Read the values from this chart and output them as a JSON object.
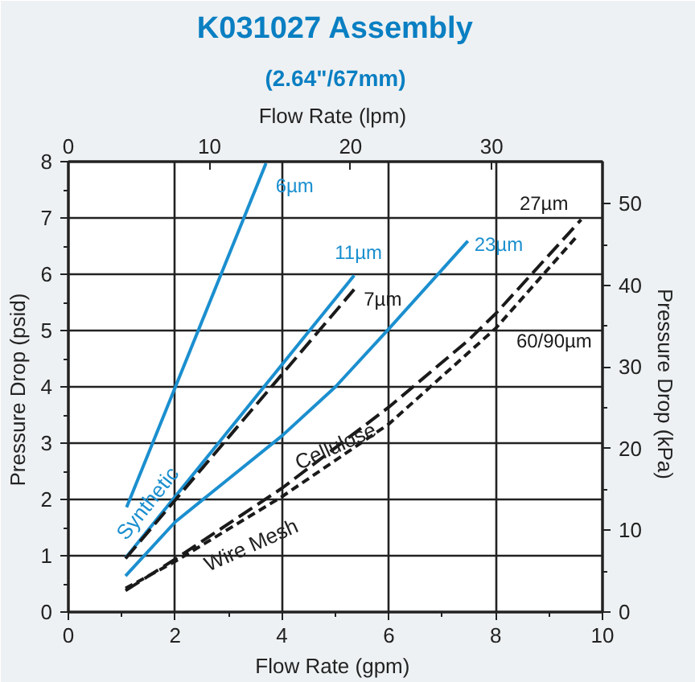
{
  "chart_data": {
    "type": "line",
    "title": "K031027 Assembly",
    "subtitle": "(2.64\"/67mm)",
    "xlabel": "Flow Rate  (gpm)",
    "x2label": "Flow Rate  (lpm)",
    "ylabel": "Pressure Drop  (psid)",
    "y2label": "Pressure Drop  (kPa)",
    "xlim": [
      0,
      10
    ],
    "xticks": [
      0,
      2,
      4,
      6,
      8,
      10
    ],
    "ylim": [
      0,
      8
    ],
    "yticks": [
      0,
      1,
      2,
      3,
      4,
      5,
      6,
      7,
      8
    ],
    "x2lim": [
      0,
      37.85
    ],
    "x2ticks": [
      0,
      10,
      20,
      30
    ],
    "y2lim": [
      0,
      55.16
    ],
    "y2ticks": [
      0,
      10,
      20,
      30,
      40,
      50
    ],
    "grid": true,
    "marker": "none",
    "series": [
      {
        "name": "6µm",
        "color": "#1b8fcf",
        "line_style": "solid",
        "x": [
          1.09,
          3.7
        ],
        "values": [
          1.86,
          7.97
        ]
      },
      {
        "name": "11µm",
        "color": "#1b8fcf",
        "line_style": "solid",
        "x": [
          1.07,
          5.35
        ],
        "values": [
          0.96,
          5.98
        ]
      },
      {
        "name": "7µm",
        "color": "#1a1a1a",
        "line_style": "dashed",
        "x": [
          1.07,
          5.35
        ],
        "values": [
          0.95,
          5.73
        ]
      },
      {
        "name": "23µm",
        "color": "#1b8fcf",
        "line_style": "solid",
        "x": [
          1.07,
          2.0,
          4.0,
          5.0,
          6.0,
          7.48
        ],
        "values": [
          0.64,
          1.6,
          3.13,
          4.0,
          5.03,
          6.59
        ]
      },
      {
        "name": "27µm",
        "color": "#1a1a1a",
        "line_style": "dashed",
        "x": [
          1.07,
          2.0,
          4.0,
          6.0,
          7.48,
          8.0,
          9.6
        ],
        "values": [
          0.38,
          0.94,
          2.2,
          3.64,
          4.82,
          5.3,
          6.97
        ]
      },
      {
        "name": "60/90µm",
        "color": "#1a1a1a",
        "line_style": "dotted",
        "x": [
          1.07,
          2.0,
          4.0,
          6.0,
          8.0,
          9.5
        ],
        "values": [
          0.42,
          0.9,
          2.05,
          3.34,
          5.04,
          6.65
        ]
      }
    ],
    "annotations": [
      {
        "text": "Synthetic",
        "x": 1.6,
        "y": 1.65
      },
      {
        "text": "Cellulose",
        "x": 5.0,
        "y": 2.95
      },
      {
        "text": "Wire Mesh",
        "x": 3.3,
        "y": 1.65
      }
    ]
  }
}
